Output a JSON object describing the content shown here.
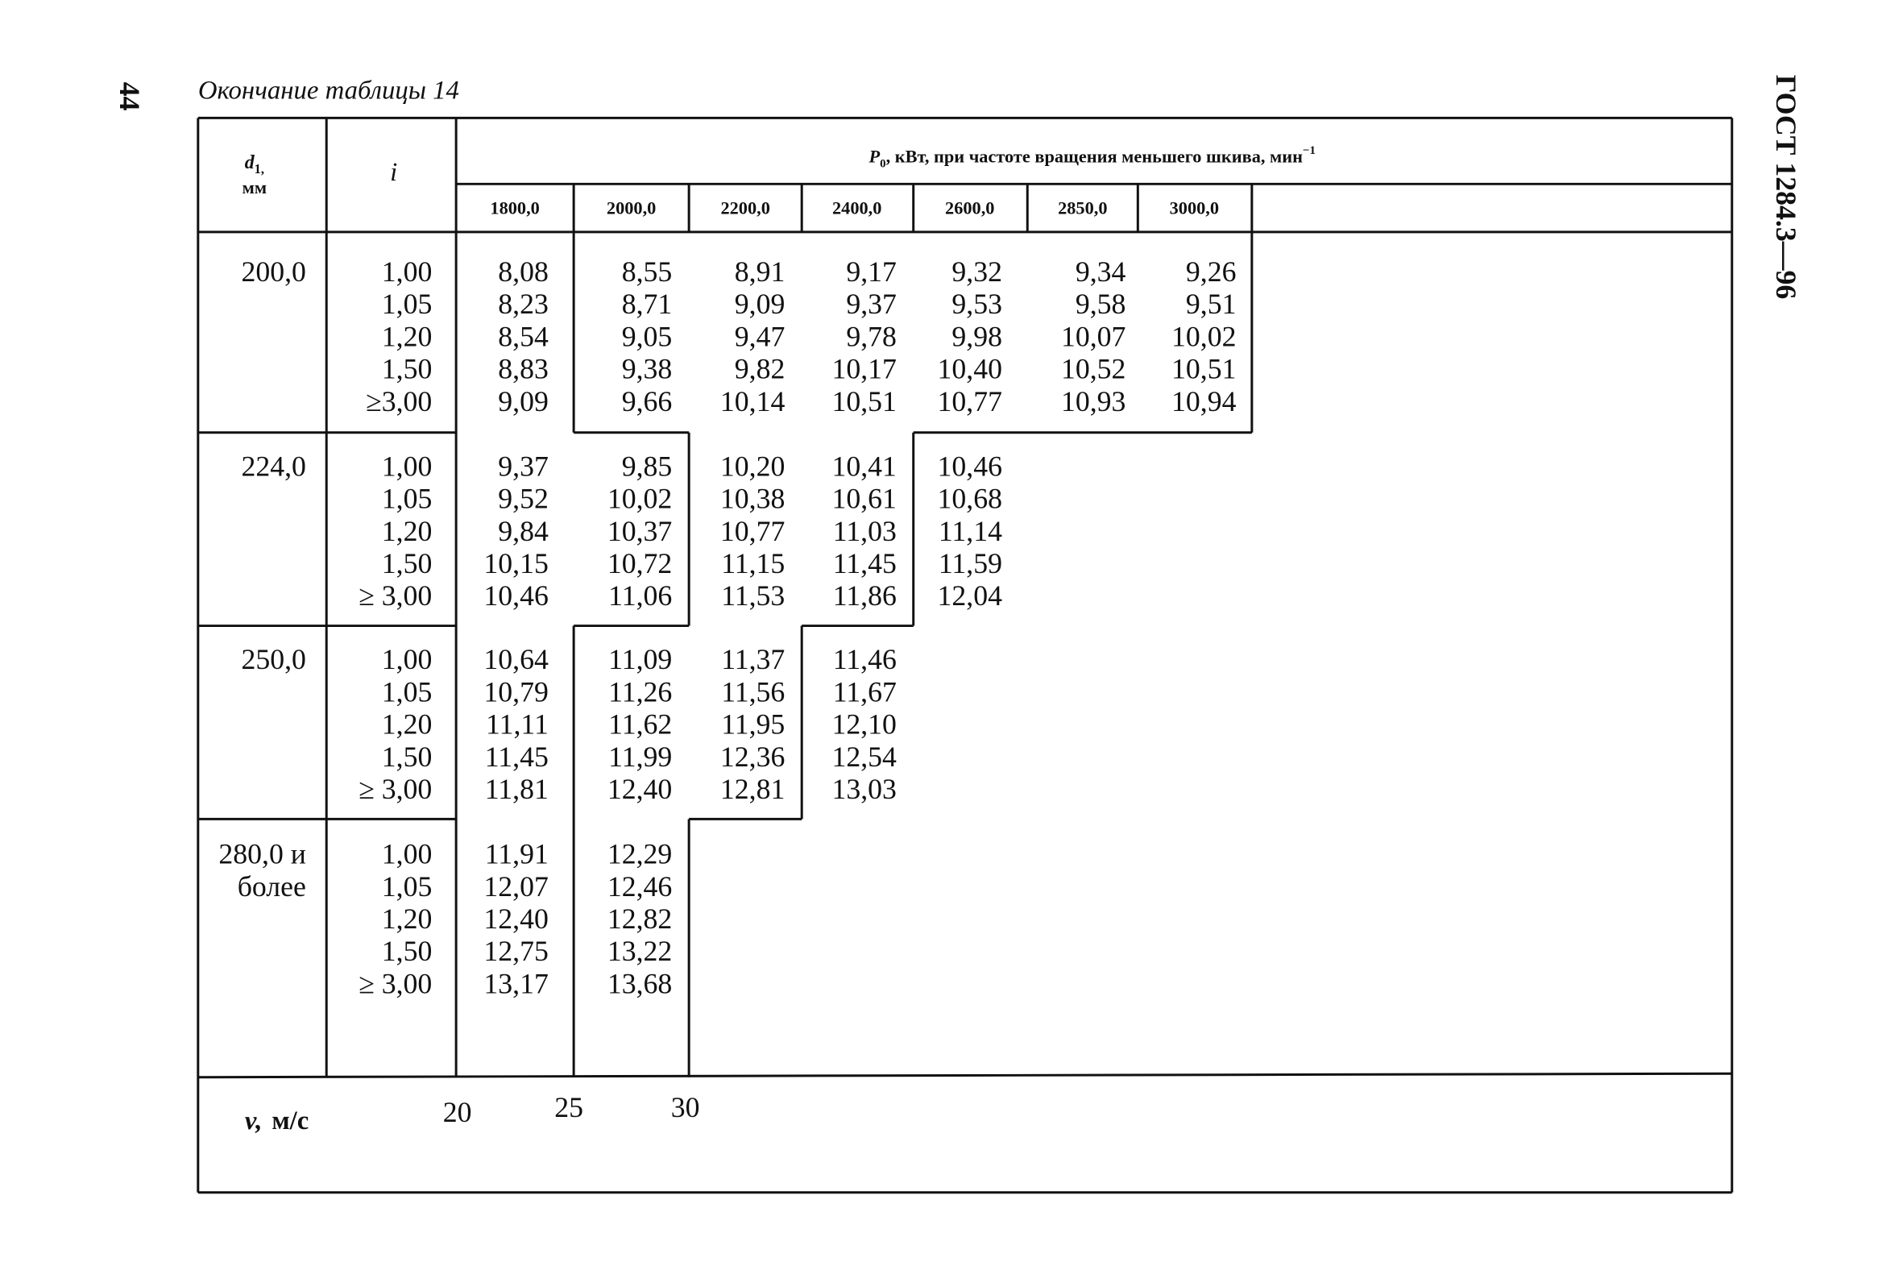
{
  "page_number": "44",
  "caption": "Окончание таблицы 14",
  "standard": "ГОСТ 1284.3—96",
  "header": {
    "d_symbol": "d",
    "d_subscript": "1,",
    "d_unit": "мм",
    "i_symbol": "i",
    "p_symbol": "P",
    "p_subscript": "0",
    "p_text": ", кВт, при частоте вращения меньшего шкива, мин",
    "p_superscript": "−1",
    "columns": [
      "1800,0",
      "2000,0",
      "2200,0",
      "2400,0",
      "2600,0",
      "2850,0",
      "3000,0"
    ]
  },
  "groups": [
    {
      "d": [
        "200,0"
      ],
      "rows": [
        {
          "i": "1,00",
          "values": [
            "8,08",
            "8,55",
            "8,91",
            "9,17",
            "9,32",
            "9,34",
            "9,26"
          ]
        },
        {
          "i": "1,05",
          "values": [
            "8,23",
            "8,71",
            "9,09",
            "9,37",
            "9,53",
            "9,58",
            "9,51"
          ]
        },
        {
          "i": "1,20",
          "values": [
            "8,54",
            "9,05",
            "9,47",
            "9,78",
            "9,98",
            "10,07",
            "10,02"
          ]
        },
        {
          "i": "1,50",
          "values": [
            "8,83",
            "9,38",
            "9,82",
            "10,17",
            "10,40",
            "10,52",
            "10,51"
          ]
        },
        {
          "i": "≥3,00",
          "values": [
            "9,09",
            "9,66",
            "10,14",
            "10,51",
            "10,77",
            "10,93",
            "10,94"
          ]
        }
      ]
    },
    {
      "d": [
        "224,0"
      ],
      "rows": [
        {
          "i": "1,00",
          "values": [
            "9,37",
            "9,85",
            "10,20",
            "10,41",
            "10,46"
          ]
        },
        {
          "i": "1,05",
          "values": [
            "9,52",
            "10,02",
            "10,38",
            "10,61",
            "10,68"
          ]
        },
        {
          "i": "1,20",
          "values": [
            "9,84",
            "10,37",
            "10,77",
            "11,03",
            "11,14"
          ]
        },
        {
          "i": "1,50",
          "values": [
            "10,15",
            "10,72",
            "11,15",
            "11,45",
            "11,59"
          ]
        },
        {
          "i": "≥ 3,00",
          "values": [
            "10,46",
            "11,06",
            "11,53",
            "11,86",
            "12,04"
          ]
        }
      ]
    },
    {
      "d": [
        "250,0"
      ],
      "rows": [
        {
          "i": "1,00",
          "values": [
            "10,64",
            "11,09",
            "11,37",
            "11,46"
          ]
        },
        {
          "i": "1,05",
          "values": [
            "10,79",
            "11,26",
            "11,56",
            "11,67"
          ]
        },
        {
          "i": "1,20",
          "values": [
            "11,11",
            "11,62",
            "11,95",
            "12,10"
          ]
        },
        {
          "i": "1,50",
          "values": [
            "11,45",
            "11,99",
            "12,36",
            "12,54"
          ]
        },
        {
          "i": "≥ 3,00",
          "values": [
            "11,81",
            "12,40",
            "12,81",
            "13,03"
          ]
        }
      ]
    },
    {
      "d": [
        "280,0 и",
        "более"
      ],
      "rows": [
        {
          "i": "1,00",
          "values": [
            "11,91",
            "12,29"
          ]
        },
        {
          "i": "1,05",
          "values": [
            "12,07",
            "12,46"
          ]
        },
        {
          "i": "1,20",
          "values": [
            "12,40",
            "12,82"
          ]
        },
        {
          "i": "1,50",
          "values": [
            "12,75",
            "13,22"
          ]
        },
        {
          "i": "≥ 3,00",
          "values": [
            "13,17",
            "13,68"
          ]
        }
      ]
    }
  ],
  "footer": {
    "symbol": "v,",
    "unit": "м/с",
    "marks": [
      "20",
      "25",
      "30"
    ]
  }
}
